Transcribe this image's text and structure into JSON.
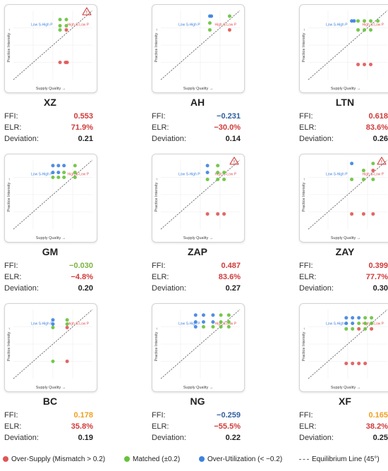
{
  "colors": {
    "over_supply": "#e05555",
    "matched": "#66c23a",
    "over_utilization": "#3d82e0",
    "equilibrium": "#666666",
    "value_red": "#d03a3a",
    "value_blue": "#2f5f9e",
    "value_green": "#7cb342",
    "value_orange": "#f0a020",
    "warning": "#d03a3a"
  },
  "labels": {
    "xlabel": "Supply Quality →",
    "ylabel": "Practice Intensity →",
    "region_left": "Low S-High P",
    "region_right": "High S-Low P",
    "ffi": "FFI:",
    "elr": "ELR:",
    "deviation": "Deviation:",
    "warning_icon": "!"
  },
  "legend": {
    "over_supply": "Over-Supply (Mismatch > 0.2)",
    "matched": "Matched (±0.2)",
    "over_utilization": "Over-Utilization (< −0.2)",
    "equilibrium": "Equilibrium Line (45°)"
  },
  "chart_data": [
    {
      "type": "scatter",
      "title": "XZ",
      "ffi": "0.553",
      "elr": "71.9%",
      "deviation": "0.21",
      "ffi_color": "value_red",
      "elr_color": "value_red",
      "warning": true,
      "points": [
        {
          "x": 0.59,
          "y": 0.87,
          "cat": "matched"
        },
        {
          "x": 0.67,
          "y": 0.87,
          "cat": "matched"
        },
        {
          "x": 0.59,
          "y": 0.78,
          "cat": "matched"
        },
        {
          "x": 0.67,
          "y": 0.78,
          "cat": "matched"
        },
        {
          "x": 0.59,
          "y": 0.72,
          "cat": "matched"
        },
        {
          "x": 0.67,
          "y": 0.72,
          "cat": "over_supply"
        },
        {
          "x": 0.59,
          "y": 0.25,
          "cat": "over_supply"
        },
        {
          "x": 0.66,
          "y": 0.25,
          "cat": "over_supply"
        },
        {
          "x": 0.68,
          "y": 0.25,
          "cat": "over_supply"
        }
      ]
    },
    {
      "type": "scatter",
      "title": "AH",
      "ffi": "−0.231",
      "elr": "−30.0%",
      "deviation": "0.14",
      "ffi_color": "value_blue",
      "elr_color": "value_red",
      "warning": false,
      "points": [
        {
          "x": 0.62,
          "y": 0.92,
          "cat": "over_utilization"
        },
        {
          "x": 0.64,
          "y": 0.92,
          "cat": "over_utilization"
        },
        {
          "x": 0.87,
          "y": 0.92,
          "cat": "matched"
        },
        {
          "x": 0.62,
          "y": 0.82,
          "cat": "matched"
        },
        {
          "x": 0.62,
          "y": 0.72,
          "cat": "matched"
        },
        {
          "x": 0.87,
          "y": 0.72,
          "cat": "over_supply"
        }
      ]
    },
    {
      "type": "scatter",
      "title": "LTN",
      "ffi": "0.618",
      "elr": "83.6%",
      "deviation": "0.26",
      "ffi_color": "value_red",
      "elr_color": "value_red",
      "warning": false,
      "points": [
        {
          "x": 0.55,
          "y": 0.85,
          "cat": "over_utilization"
        },
        {
          "x": 0.58,
          "y": 0.85,
          "cat": "over_utilization"
        },
        {
          "x": 0.63,
          "y": 0.85,
          "cat": "matched"
        },
        {
          "x": 0.71,
          "y": 0.85,
          "cat": "matched"
        },
        {
          "x": 0.79,
          "y": 0.85,
          "cat": "matched"
        },
        {
          "x": 0.88,
          "y": 0.85,
          "cat": "matched"
        },
        {
          "x": 0.63,
          "y": 0.72,
          "cat": "matched"
        },
        {
          "x": 0.71,
          "y": 0.72,
          "cat": "matched"
        },
        {
          "x": 0.79,
          "y": 0.72,
          "cat": "matched"
        },
        {
          "x": 0.63,
          "y": 0.22,
          "cat": "over_supply"
        },
        {
          "x": 0.71,
          "y": 0.22,
          "cat": "over_supply"
        },
        {
          "x": 0.79,
          "y": 0.22,
          "cat": "over_supply"
        }
      ]
    },
    {
      "type": "scatter",
      "title": "GM",
      "ffi": "−0.030",
      "elr": "−4.8%",
      "deviation": "0.20",
      "ffi_color": "value_green",
      "elr_color": "value_red",
      "warning": false,
      "points": [
        {
          "x": 0.5,
          "y": 0.92,
          "cat": "over_utilization"
        },
        {
          "x": 0.57,
          "y": 0.92,
          "cat": "over_utilization"
        },
        {
          "x": 0.64,
          "y": 0.92,
          "cat": "over_utilization"
        },
        {
          "x": 0.78,
          "y": 0.92,
          "cat": "matched"
        },
        {
          "x": 0.5,
          "y": 0.82,
          "cat": "over_utilization"
        },
        {
          "x": 0.57,
          "y": 0.82,
          "cat": "over_utilization"
        },
        {
          "x": 0.64,
          "y": 0.82,
          "cat": "matched"
        },
        {
          "x": 0.78,
          "y": 0.82,
          "cat": "matched"
        },
        {
          "x": 0.5,
          "y": 0.75,
          "cat": "matched"
        },
        {
          "x": 0.57,
          "y": 0.75,
          "cat": "matched"
        },
        {
          "x": 0.64,
          "y": 0.75,
          "cat": "matched"
        },
        {
          "x": 0.78,
          "y": 0.75,
          "cat": "matched"
        }
      ]
    },
    {
      "type": "scatter",
      "title": "ZAP",
      "ffi": "0.487",
      "elr": "83.6%",
      "deviation": "0.27",
      "ffi_color": "value_red",
      "elr_color": "value_red",
      "warning": true,
      "points": [
        {
          "x": 0.59,
          "y": 0.92,
          "cat": "over_utilization"
        },
        {
          "x": 0.72,
          "y": 0.92,
          "cat": "matched"
        },
        {
          "x": 0.59,
          "y": 0.82,
          "cat": "over_utilization"
        },
        {
          "x": 0.72,
          "y": 0.82,
          "cat": "matched"
        },
        {
          "x": 0.8,
          "y": 0.82,
          "cat": "matched"
        },
        {
          "x": 0.59,
          "y": 0.72,
          "cat": "matched"
        },
        {
          "x": 0.72,
          "y": 0.72,
          "cat": "matched"
        },
        {
          "x": 0.8,
          "y": 0.72,
          "cat": "matched"
        },
        {
          "x": 0.59,
          "y": 0.22,
          "cat": "over_supply"
        },
        {
          "x": 0.72,
          "y": 0.22,
          "cat": "over_supply"
        },
        {
          "x": 0.8,
          "y": 0.22,
          "cat": "over_supply"
        }
      ]
    },
    {
      "type": "scatter",
      "title": "ZAY",
      "ffi": "0.399",
      "elr": "77.7%",
      "deviation": "0.30",
      "ffi_color": "value_red",
      "elr_color": "value_red",
      "warning": true,
      "points": [
        {
          "x": 0.55,
          "y": 0.95,
          "cat": "over_utilization"
        },
        {
          "x": 0.82,
          "y": 0.95,
          "cat": "matched"
        },
        {
          "x": 0.7,
          "y": 0.85,
          "cat": "matched"
        },
        {
          "x": 0.82,
          "y": 0.85,
          "cat": "over_supply"
        },
        {
          "x": 0.55,
          "y": 0.72,
          "cat": "matched"
        },
        {
          "x": 0.7,
          "y": 0.72,
          "cat": "matched"
        },
        {
          "x": 0.82,
          "y": 0.72,
          "cat": "matched"
        },
        {
          "x": 0.55,
          "y": 0.22,
          "cat": "over_supply"
        },
        {
          "x": 0.7,
          "y": 0.22,
          "cat": "over_supply"
        },
        {
          "x": 0.82,
          "y": 0.22,
          "cat": "over_supply"
        }
      ]
    },
    {
      "type": "scatter",
      "title": "BC",
      "ffi": "0.178",
      "elr": "35.8%",
      "deviation": "0.19",
      "ffi_color": "value_orange",
      "elr_color": "value_red",
      "warning": false,
      "points": [
        {
          "x": 0.5,
          "y": 0.85,
          "cat": "over_utilization"
        },
        {
          "x": 0.68,
          "y": 0.85,
          "cat": "matched"
        },
        {
          "x": 0.5,
          "y": 0.79,
          "cat": "over_utilization"
        },
        {
          "x": 0.68,
          "y": 0.79,
          "cat": "matched"
        },
        {
          "x": 0.5,
          "y": 0.74,
          "cat": "matched"
        },
        {
          "x": 0.68,
          "y": 0.74,
          "cat": "over_supply"
        },
        {
          "x": 0.5,
          "y": 0.25,
          "cat": "matched"
        },
        {
          "x": 0.68,
          "y": 0.25,
          "cat": "over_supply"
        }
      ]
    },
    {
      "type": "scatter",
      "title": "NG",
      "ffi": "−0.259",
      "elr": "−55.5%",
      "deviation": "0.22",
      "ffi_color": "value_blue",
      "elr_color": "value_red",
      "warning": false,
      "points": [
        {
          "x": 0.44,
          "y": 0.92,
          "cat": "over_utilization"
        },
        {
          "x": 0.54,
          "y": 0.92,
          "cat": "over_utilization"
        },
        {
          "x": 0.66,
          "y": 0.92,
          "cat": "over_utilization"
        },
        {
          "x": 0.76,
          "y": 0.92,
          "cat": "matched"
        },
        {
          "x": 0.86,
          "y": 0.92,
          "cat": "matched"
        },
        {
          "x": 0.44,
          "y": 0.82,
          "cat": "over_utilization"
        },
        {
          "x": 0.54,
          "y": 0.82,
          "cat": "over_utilization"
        },
        {
          "x": 0.66,
          "y": 0.82,
          "cat": "over_utilization"
        },
        {
          "x": 0.76,
          "y": 0.82,
          "cat": "matched"
        },
        {
          "x": 0.86,
          "y": 0.82,
          "cat": "matched"
        },
        {
          "x": 0.44,
          "y": 0.75,
          "cat": "over_utilization"
        },
        {
          "x": 0.54,
          "y": 0.75,
          "cat": "matched"
        },
        {
          "x": 0.66,
          "y": 0.75,
          "cat": "matched"
        },
        {
          "x": 0.76,
          "y": 0.75,
          "cat": "matched"
        },
        {
          "x": 0.86,
          "y": 0.75,
          "cat": "matched"
        }
      ]
    },
    {
      "type": "scatter",
      "title": "XF",
      "ffi": "0.165",
      "elr": "38.2%",
      "deviation": "0.25",
      "ffi_color": "value_orange",
      "elr_color": "value_red",
      "warning": false,
      "points": [
        {
          "x": 0.48,
          "y": 0.88,
          "cat": "over_utilization"
        },
        {
          "x": 0.56,
          "y": 0.88,
          "cat": "over_utilization"
        },
        {
          "x": 0.64,
          "y": 0.88,
          "cat": "over_utilization"
        },
        {
          "x": 0.72,
          "y": 0.88,
          "cat": "matched"
        },
        {
          "x": 0.8,
          "y": 0.88,
          "cat": "matched"
        },
        {
          "x": 0.48,
          "y": 0.8,
          "cat": "over_utilization"
        },
        {
          "x": 0.56,
          "y": 0.8,
          "cat": "over_utilization"
        },
        {
          "x": 0.64,
          "y": 0.8,
          "cat": "matched"
        },
        {
          "x": 0.72,
          "y": 0.8,
          "cat": "matched"
        },
        {
          "x": 0.8,
          "y": 0.8,
          "cat": "matched"
        },
        {
          "x": 0.48,
          "y": 0.72,
          "cat": "matched"
        },
        {
          "x": 0.56,
          "y": 0.72,
          "cat": "matched"
        },
        {
          "x": 0.64,
          "y": 0.72,
          "cat": "over_supply"
        },
        {
          "x": 0.72,
          "y": 0.72,
          "cat": "matched"
        },
        {
          "x": 0.8,
          "y": 0.72,
          "cat": "over_supply"
        },
        {
          "x": 0.48,
          "y": 0.22,
          "cat": "over_supply"
        },
        {
          "x": 0.56,
          "y": 0.22,
          "cat": "over_supply"
        },
        {
          "x": 0.64,
          "y": 0.22,
          "cat": "over_supply"
        },
        {
          "x": 0.72,
          "y": 0.22,
          "cat": "over_supply"
        }
      ]
    }
  ]
}
